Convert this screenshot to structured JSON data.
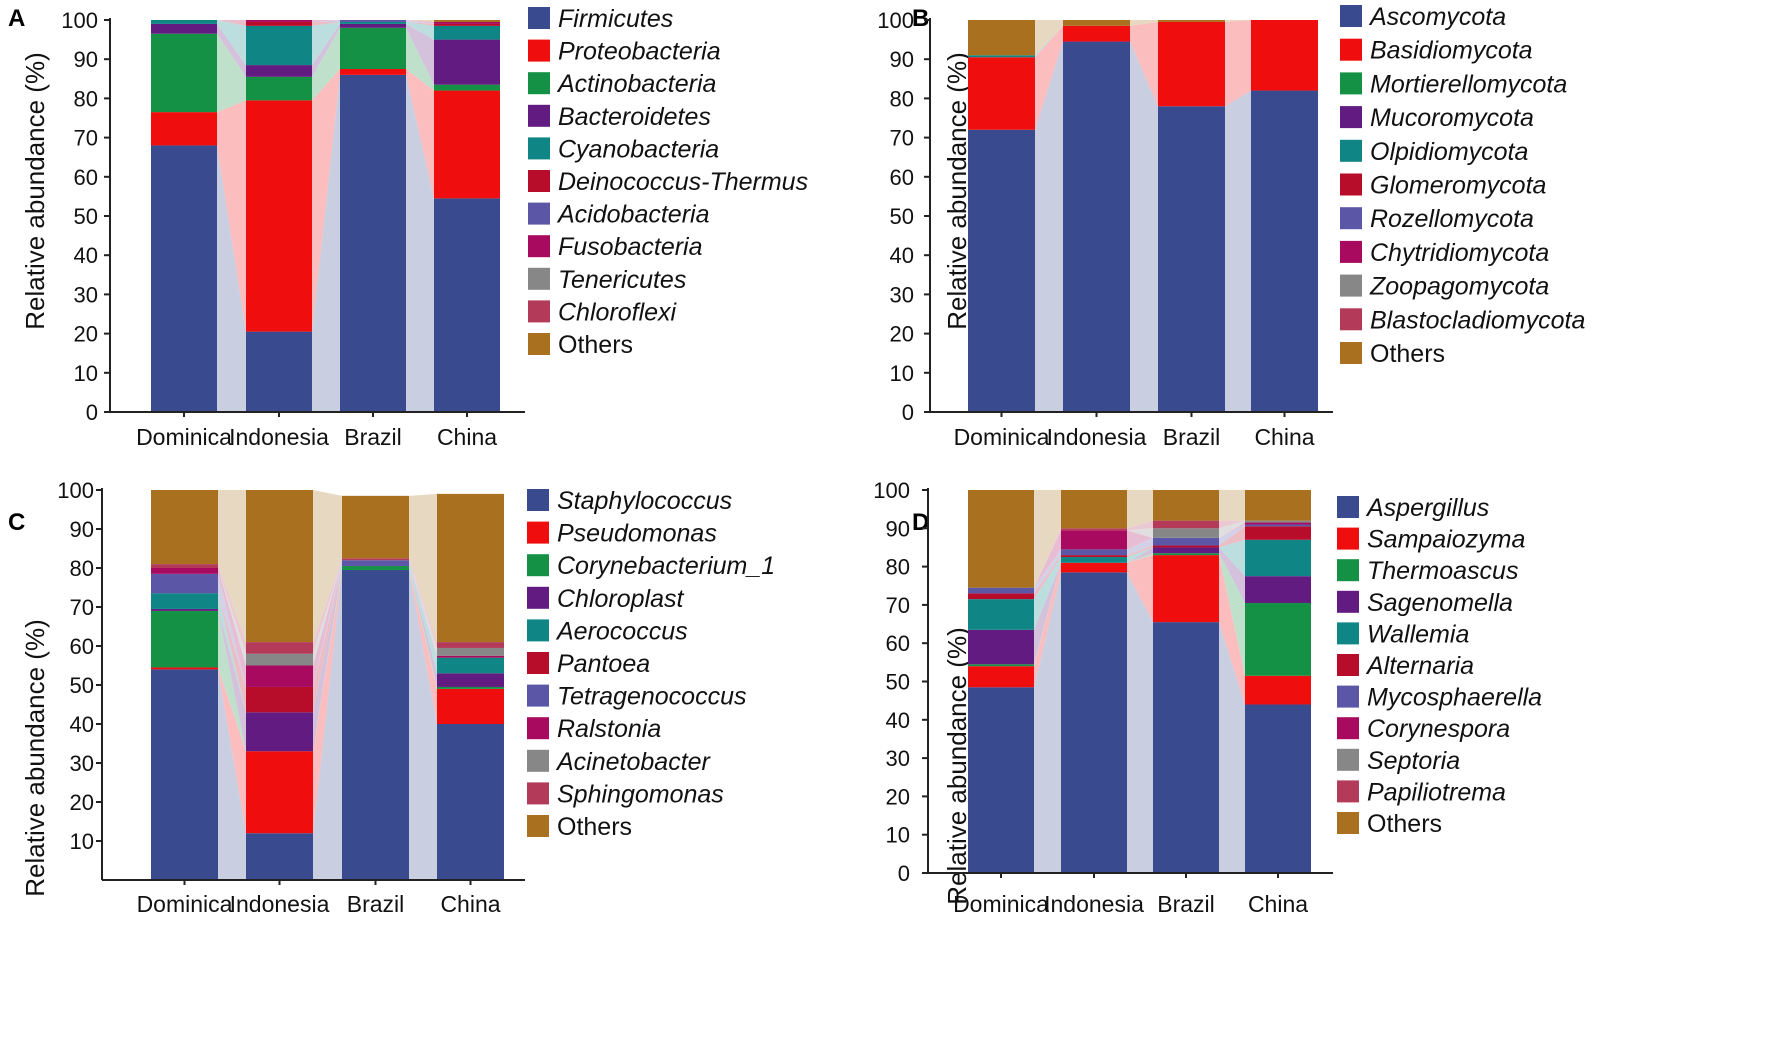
{
  "chart_data": [
    {
      "panel": "A",
      "type": "bar",
      "stacked": true,
      "ylabel": "Relative abundance (%)",
      "xlabel": "",
      "ylim": [
        0,
        100
      ],
      "yticks": [
        0,
        10,
        20,
        30,
        40,
        50,
        60,
        70,
        80,
        90,
        100
      ],
      "categories": [
        "Dominica",
        "Indonesia",
        "Brazil",
        "China"
      ],
      "legend_position": "right",
      "series": [
        {
          "name": "Firmicutes",
          "color": "#3a4a8f",
          "values": [
            68,
            20.5,
            86,
            54.5
          ]
        },
        {
          "name": "Proteobacteria",
          "color": "#f00d0d",
          "values": [
            8.5,
            59,
            1.5,
            27.5
          ]
        },
        {
          "name": "Actinobacteria",
          "color": "#149144",
          "values": [
            20,
            6,
            10.5,
            1.5
          ]
        },
        {
          "name": "Bacteroidetes",
          "color": "#621b80",
          "values": [
            2.5,
            3,
            1,
            11.5
          ]
        },
        {
          "name": "Cyanobacteria",
          "color": "#0f8585",
          "values": [
            1,
            10,
            0.5,
            3.5
          ]
        },
        {
          "name": "Deinococcus-Thermus",
          "color": "#b80d2a",
          "values": [
            0,
            1,
            0,
            0.5
          ]
        },
        {
          "name": "Acidobacteria",
          "color": "#5b56a6",
          "values": [
            0,
            0,
            0.5,
            0
          ]
        },
        {
          "name": "Fusobacteria",
          "color": "#a80a5f",
          "values": [
            0,
            0.5,
            0,
            0.5
          ]
        },
        {
          "name": "Tenericutes",
          "color": "#878787",
          "values": [
            0,
            0,
            0,
            0
          ]
        },
        {
          "name": "Chloroflexi",
          "color": "#b33b59",
          "values": [
            0,
            0,
            0,
            0
          ]
        },
        {
          "name": "Others",
          "color": "#a8701f",
          "values": [
            0,
            0,
            0,
            0.5
          ]
        }
      ]
    },
    {
      "panel": "B",
      "type": "bar",
      "stacked": true,
      "ylabel": "Relative abundance (%)",
      "xlabel": "",
      "ylim": [
        0,
        100
      ],
      "yticks": [
        0,
        10,
        20,
        30,
        40,
        50,
        60,
        70,
        80,
        90,
        100
      ],
      "categories": [
        "Dominica",
        "Indonesia",
        "Brazil",
        "China"
      ],
      "legend_position": "right",
      "series": [
        {
          "name": "Ascomycota",
          "color": "#3a4a8f",
          "values": [
            72,
            94.5,
            78,
            82
          ]
        },
        {
          "name": "Basidiomycota",
          "color": "#f00d0d",
          "values": [
            18.5,
            4,
            21.5,
            18
          ]
        },
        {
          "name": "Mortierellomycota",
          "color": "#149144",
          "values": [
            0,
            0,
            0,
            0
          ]
        },
        {
          "name": "Mucoromycota",
          "color": "#621b80",
          "values": [
            0,
            0,
            0,
            0
          ]
        },
        {
          "name": "Olpidiomycota",
          "color": "#0f8585",
          "values": [
            0.5,
            0,
            0,
            0
          ]
        },
        {
          "name": "Glomeromycota",
          "color": "#b80d2a",
          "values": [
            0,
            0,
            0,
            0
          ]
        },
        {
          "name": "Rozellomycota",
          "color": "#5b56a6",
          "values": [
            0,
            0,
            0,
            0
          ]
        },
        {
          "name": "Chytridiomycota",
          "color": "#a80a5f",
          "values": [
            0,
            0,
            0,
            0
          ]
        },
        {
          "name": "Zoopagomycota",
          "color": "#878787",
          "values": [
            0,
            0,
            0,
            0
          ]
        },
        {
          "name": "Blastocladiomycota",
          "color": "#b33b59",
          "values": [
            0,
            0,
            0,
            0
          ]
        },
        {
          "name": "Others",
          "color": "#a8701f",
          "values": [
            9,
            1.5,
            0.5,
            0
          ]
        }
      ]
    },
    {
      "panel": "C",
      "type": "bar",
      "stacked": true,
      "ylabel": "Relative abundance (%)",
      "xlabel": "",
      "ylim": [
        0,
        100
      ],
      "yticks": [
        10,
        20,
        30,
        40,
        50,
        60,
        70,
        80,
        90,
        100
      ],
      "categories": [
        "Dominica",
        "Indonesia",
        "Brazil",
        "China"
      ],
      "legend_position": "right",
      "series": [
        {
          "name": "Staphylococcus",
          "color": "#3a4a8f",
          "values": [
            54,
            12,
            79.5,
            40
          ]
        },
        {
          "name": "Pseudomonas",
          "color": "#f00d0d",
          "values": [
            0.5,
            21,
            0,
            9
          ]
        },
        {
          "name": "Corynebacterium_1",
          "color": "#149144",
          "values": [
            14.5,
            0,
            1,
            0.5
          ]
        },
        {
          "name": "Chloroplast",
          "color": "#621b80",
          "values": [
            0.5,
            10,
            0,
            3.5
          ]
        },
        {
          "name": "Aerococcus",
          "color": "#0f8585",
          "values": [
            4,
            0,
            0,
            4
          ]
        },
        {
          "name": "Pantoea",
          "color": "#b80d2a",
          "values": [
            0,
            6.5,
            0,
            0
          ]
        },
        {
          "name": "Tetragenococcus",
          "color": "#5b56a6",
          "values": [
            5,
            0,
            1.5,
            0
          ]
        },
        {
          "name": "Ralstonia",
          "color": "#a80a5f",
          "values": [
            1.5,
            5.5,
            0,
            0.5
          ]
        },
        {
          "name": "Acinetobacter",
          "color": "#878787",
          "values": [
            0,
            3,
            0,
            2
          ]
        },
        {
          "name": "Sphingomonas",
          "color": "#b33b59",
          "values": [
            1,
            3,
            0.5,
            1.5
          ]
        },
        {
          "name": "Others",
          "color": "#a8701f",
          "values": [
            19,
            39,
            16,
            38
          ]
        }
      ]
    },
    {
      "panel": "D",
      "type": "bar",
      "stacked": true,
      "ylabel": "Relative abundance (%)",
      "xlabel": "",
      "ylim": [
        0,
        100
      ],
      "yticks": [
        0,
        10,
        20,
        30,
        40,
        50,
        60,
        70,
        80,
        90,
        100
      ],
      "categories": [
        "Dominica",
        "Indonesia",
        "Brazil",
        "China"
      ],
      "legend_position": "right",
      "series": [
        {
          "name": "Aspergillus",
          "color": "#3a4a8f",
          "values": [
            48.5,
            78.5,
            65.5,
            44
          ]
        },
        {
          "name": "Sampaiozyma",
          "color": "#f00d0d",
          "values": [
            5.5,
            2.5,
            17.5,
            7.5
          ]
        },
        {
          "name": "Thermoascus",
          "color": "#149144",
          "values": [
            0.5,
            0,
            0.5,
            19
          ]
        },
        {
          "name": "Sagenomella",
          "color": "#621b80",
          "values": [
            9,
            0,
            1.5,
            7
          ]
        },
        {
          "name": "Wallemia",
          "color": "#0f8585",
          "values": [
            8,
            1.5,
            0,
            9.5
          ]
        },
        {
          "name": "Alternaria",
          "color": "#b80d2a",
          "values": [
            1.5,
            0.5,
            0.5,
            3.5
          ]
        },
        {
          "name": "Mycosphaerella",
          "color": "#5b56a6",
          "values": [
            1.5,
            1.5,
            2,
            0.5
          ]
        },
        {
          "name": "Corynespora",
          "color": "#a80a5f",
          "values": [
            0,
            5,
            0,
            0.5
          ]
        },
        {
          "name": "Septoria",
          "color": "#878787",
          "values": [
            0,
            0,
            2.5,
            0.5
          ]
        },
        {
          "name": "Papiliotrema",
          "color": "#b33b59",
          "values": [
            0,
            0.5,
            2,
            0
          ]
        },
        {
          "name": "Others",
          "color": "#a8701f",
          "values": [
            25.5,
            10,
            8,
            8
          ]
        }
      ]
    }
  ]
}
